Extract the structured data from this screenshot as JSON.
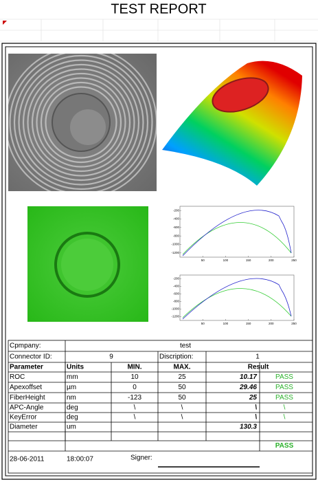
{
  "header": {
    "title": "TEST REPORT"
  },
  "plots": [
    {
      "xticks": [
        50,
        100,
        150,
        200,
        250
      ],
      "yticks": [
        -200,
        -400,
        -600,
        -800,
        -1000,
        -1200
      ]
    },
    {
      "xticks": [
        50,
        100,
        150,
        200,
        250
      ],
      "yticks": [
        -200,
        -400,
        -600,
        -800,
        -1000,
        -1200
      ]
    }
  ],
  "info": {
    "company_label": "Cpmpany:",
    "company": "test",
    "connector_label": "Connector  ID:",
    "connector": "9",
    "description_label": "Discription:",
    "description": "1"
  },
  "table": {
    "header": [
      "Parameter",
      "Units",
      "MIN.",
      "MAX.",
      "Result"
    ],
    "rows": [
      {
        "parameter": "ROC",
        "units": "mm",
        "min": "10",
        "max": "25",
        "result": "10.17",
        "status": "PASS"
      },
      {
        "parameter": "Apexoffset",
        "units": "µm",
        "min": "0",
        "max": "50",
        "result": "29.46",
        "status": "PASS"
      },
      {
        "parameter": "FiberHeight",
        "units": "nm",
        "min": "-123",
        "max": "50",
        "result": "25",
        "status": "PASS"
      },
      {
        "parameter": "APC-Angle",
        "units": "deg",
        "min": "\\",
        "max": "\\",
        "result": "\\",
        "status": "\\"
      },
      {
        "parameter": "KeyError",
        "units": "deg",
        "min": "\\",
        "max": "\\",
        "result": "\\",
        "status": "\\"
      },
      {
        "parameter": "Diameter",
        "units": "um",
        "result": "130.3"
      }
    ],
    "overall": "PASS"
  },
  "footer": {
    "date": "28-06-2011",
    "time": "18:00:07",
    "signer_label": "Signer:"
  }
}
